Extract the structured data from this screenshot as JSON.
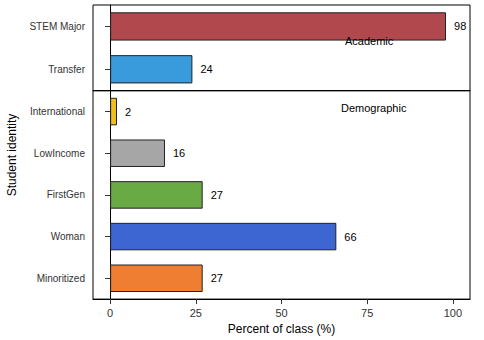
{
  "chart_data": {
    "type": "bar",
    "orientation": "horizontal",
    "data_labels": true,
    "grid": false,
    "xlabel": "Percent of class (%)",
    "ylabel": "Student identity",
    "xlim": [
      -5,
      105
    ],
    "xticks": [
      0,
      25,
      50,
      75,
      100
    ],
    "panels": [
      {
        "title": "Academic",
        "categories": [
          "STEM Major",
          "Transfer"
        ],
        "values": [
          98,
          24
        ],
        "colors": [
          "#b0484d",
          "#3a9bdc"
        ]
      },
      {
        "title": "Demographic",
        "categories": [
          "International",
          "LowIncome",
          "FirstGen",
          "Woman",
          "Minoritized"
        ],
        "values": [
          2,
          16,
          27,
          66,
          27
        ],
        "colors": [
          "#f2c01e",
          "#a6a6a6",
          "#6aaa45",
          "#3e66d2",
          "#ef7d32"
        ]
      }
    ]
  }
}
